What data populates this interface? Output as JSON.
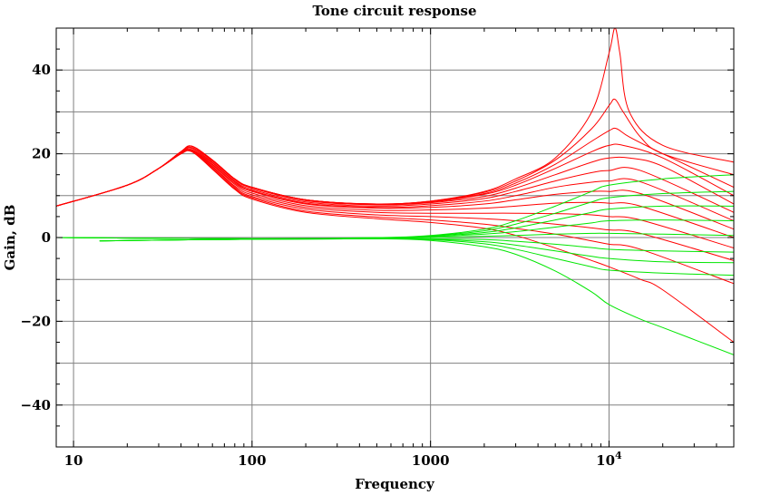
{
  "chart_data": {
    "type": "line",
    "title": "Tone circuit response",
    "xlabel": "Frequency",
    "ylabel": "Gain, dB",
    "x_scale": "log",
    "xlim": [
      8,
      50000
    ],
    "ylim": [
      -50,
      50
    ],
    "grid": true,
    "colors": {
      "red": "#ff0000",
      "green": "#00e600"
    },
    "x_ticks": [
      {
        "value": 10,
        "label": "10"
      },
      {
        "value": 100,
        "label": "100"
      },
      {
        "value": 1000,
        "label": "1000"
      },
      {
        "value": 10000,
        "label": "10^4"
      }
    ],
    "y_ticks": [
      {
        "value": 40,
        "label": "40"
      },
      {
        "value": 20,
        "label": "20"
      },
      {
        "value": 0,
        "label": "0"
      },
      {
        "value": -20,
        "label": "−20"
      },
      {
        "value": -40,
        "label": "−40"
      }
    ],
    "series": [
      {
        "color": "red",
        "x": [
          8,
          20,
          30,
          40,
          46,
          60,
          80,
          100,
          200,
          500,
          1000,
          2000,
          3000,
          5000,
          8000,
          10000,
          10800,
          11500,
          13000,
          20000,
          50000
        ],
        "y": [
          7.5,
          12.5,
          16.5,
          20.5,
          21.8,
          18.5,
          14,
          12,
          9,
          8,
          8.7,
          11,
          14,
          19,
          30,
          44,
          50,
          44,
          30,
          22,
          18
        ]
      },
      {
        "color": "red",
        "x": [
          8,
          20,
          30,
          40,
          46,
          60,
          80,
          100,
          200,
          500,
          1000,
          2000,
          3000,
          5000,
          8000,
          10000,
          10800,
          12000,
          15000,
          20000,
          50000
        ],
        "y": [
          7.5,
          12.5,
          16.5,
          20.5,
          21.8,
          18.5,
          14,
          12,
          9,
          8,
          8.7,
          10.8,
          13.5,
          18.5,
          26,
          31.5,
          33,
          30,
          24,
          20,
          15
        ]
      },
      {
        "color": "red",
        "x": [
          8,
          20,
          30,
          40,
          46,
          60,
          80,
          100,
          200,
          500,
          1000,
          2000,
          3000,
          5000,
          8000,
          10000,
          11000,
          13000,
          20000,
          50000
        ],
        "y": [
          7.5,
          12.5,
          16.5,
          20.5,
          21.8,
          18.5,
          14,
          12,
          9,
          8,
          8.6,
          10.5,
          13,
          17.5,
          23,
          25.5,
          26,
          24,
          20,
          12
        ]
      },
      {
        "color": "red",
        "x": [
          8,
          20,
          30,
          40,
          46,
          60,
          80,
          100,
          200,
          500,
          1000,
          2000,
          3000,
          5000,
          8000,
          10000,
          12000,
          20000,
          50000
        ],
        "y": [
          7.5,
          12.5,
          16.5,
          20.5,
          21.8,
          18.5,
          14,
          12,
          9,
          8,
          8.5,
          10.3,
          12.5,
          16.5,
          20.5,
          22,
          22,
          19,
          10
        ]
      },
      {
        "color": "red",
        "x": [
          8,
          20,
          30,
          40,
          46,
          60,
          80,
          100,
          200,
          500,
          1000,
          2000,
          3000,
          5000,
          8000,
          10000,
          13000,
          20000,
          50000
        ],
        "y": [
          7.5,
          12.5,
          16.5,
          20.5,
          21.5,
          18.3,
          13.8,
          11.8,
          8.8,
          7.8,
          8.3,
          9.8,
          11.8,
          15,
          18,
          19,
          19,
          17,
          8
        ]
      },
      {
        "color": "red",
        "x": [
          8,
          20,
          30,
          40,
          46,
          60,
          80,
          100,
          200,
          500,
          1000,
          2000,
          3000,
          5000,
          8000,
          10000,
          15000,
          50000
        ],
        "y": [
          7.5,
          12.5,
          16.5,
          20.3,
          21.3,
          18,
          13.5,
          11.5,
          8.5,
          7.5,
          8,
          9.3,
          11,
          13.5,
          15.5,
          16,
          16,
          6
        ]
      },
      {
        "color": "red",
        "x": [
          8,
          20,
          30,
          40,
          46,
          60,
          80,
          100,
          200,
          500,
          1000,
          2000,
          3000,
          5000,
          8000,
          10000,
          15000,
          50000
        ],
        "y": [
          7.5,
          12.5,
          16.5,
          20.2,
          21,
          17.8,
          13.3,
          11.2,
          8.2,
          7.2,
          7.6,
          8.7,
          10,
          12,
          13.2,
          13.5,
          13.3,
          4
        ]
      },
      {
        "color": "red",
        "x": [
          8,
          20,
          30,
          40,
          46,
          60,
          80,
          100,
          200,
          500,
          1000,
          2000,
          3000,
          5000,
          8000,
          10000,
          15000,
          50000
        ],
        "y": [
          7.5,
          12.5,
          16.5,
          20,
          20.8,
          17.5,
          13,
          11,
          8,
          7,
          7.2,
          8,
          9,
          10.3,
          11,
          11,
          10.5,
          2
        ]
      },
      {
        "color": "red",
        "x": [
          8,
          20,
          30,
          40,
          46,
          60,
          80,
          100,
          200,
          500,
          1000,
          2000,
          3000,
          5000,
          8000,
          10000,
          15000,
          50000
        ],
        "y": [
          7.5,
          12.5,
          16.5,
          20,
          20.7,
          17.3,
          12.7,
          10.6,
          7.6,
          6.5,
          6.6,
          7,
          7.5,
          8.2,
          8.4,
          8.2,
          7.5,
          0
        ]
      },
      {
        "color": "red",
        "x": [
          8,
          20,
          30,
          40,
          46,
          60,
          80,
          100,
          200,
          500,
          1000,
          2000,
          3000,
          5000,
          8000,
          10000,
          15000,
          50000
        ],
        "y": [
          7.5,
          12.5,
          16.5,
          20,
          20.6,
          17,
          12.3,
          10.2,
          7.2,
          6,
          5.8,
          5.8,
          5.8,
          5.7,
          5.4,
          5,
          4.2,
          -2.5
        ]
      },
      {
        "color": "red",
        "x": [
          8,
          20,
          30,
          40,
          46,
          60,
          80,
          100,
          200,
          500,
          1000,
          2000,
          3000,
          5000,
          8000,
          10000,
          15000,
          50000
        ],
        "y": [
          7.5,
          12.5,
          16.5,
          20,
          20.5,
          16.8,
          12,
          9.8,
          6.8,
          5.4,
          5,
          4.5,
          4,
          3.2,
          2.3,
          1.8,
          1,
          -5.5
        ]
      },
      {
        "color": "red",
        "x": [
          8,
          20,
          30,
          40,
          46,
          60,
          80,
          100,
          200,
          500,
          1000,
          2000,
          3000,
          5000,
          8000,
          10000,
          15000,
          50000
        ],
        "y": [
          7.5,
          12.5,
          16.5,
          20,
          20.5,
          16.5,
          11.7,
          9.5,
          6.3,
          4.9,
          4.2,
          3.2,
          2.2,
          0.8,
          -0.8,
          -1.6,
          -2.8,
          -11
        ]
      },
      {
        "color": "red",
        "x": [
          8,
          20,
          30,
          40,
          46,
          60,
          80,
          100,
          200,
          500,
          1000,
          2000,
          3000,
          5000,
          8000,
          10000,
          15000,
          20000,
          50000
        ],
        "y": [
          7.5,
          12.5,
          16.5,
          20,
          20.5,
          16.3,
          11.5,
          9.2,
          6,
          4.5,
          3.6,
          2.2,
          0.5,
          -2.5,
          -5.5,
          -7,
          -10,
          -12.5,
          -25
        ]
      },
      {
        "color": "green",
        "x": [
          8,
          100,
          500,
          1000,
          2000,
          3000,
          5000,
          8000,
          10000,
          20000,
          50000
        ],
        "y": [
          0,
          -0.3,
          0,
          0.5,
          2,
          4,
          7.5,
          11,
          12.5,
          14,
          15
        ]
      },
      {
        "color": "green",
        "x": [
          8,
          100,
          500,
          1000,
          2000,
          3000,
          5000,
          8000,
          10000,
          20000,
          50000
        ],
        "y": [
          0,
          -0.3,
          -0.1,
          0.4,
          1.6,
          3.2,
          5.8,
          8.5,
          9.5,
          10.5,
          11
        ]
      },
      {
        "color": "green",
        "x": [
          8,
          100,
          500,
          1000,
          2000,
          3000,
          5000,
          8000,
          10000,
          20000,
          50000
        ],
        "y": [
          0,
          -0.3,
          -0.1,
          0.3,
          1.2,
          2.3,
          4.2,
          6,
          6.8,
          7.5,
          7.5
        ]
      },
      {
        "color": "green",
        "x": [
          8,
          100,
          500,
          1000,
          2000,
          3000,
          5000,
          8000,
          10000,
          20000,
          50000
        ],
        "y": [
          0,
          -0.3,
          -0.2,
          0.2,
          0.8,
          1.4,
          2.5,
          3.5,
          4,
          4.2,
          4
        ]
      },
      {
        "color": "green",
        "x": [
          8,
          100,
          500,
          1000,
          2000,
          3000,
          5000,
          8000,
          10000,
          20000,
          50000
        ],
        "y": [
          0,
          -0.3,
          -0.2,
          0,
          0.3,
          0.5,
          0.8,
          1,
          1,
          0.8,
          0.5
        ]
      },
      {
        "color": "green",
        "x": [
          14,
          100,
          500,
          1000,
          2000,
          3000,
          5000,
          8000,
          10000,
          20000,
          50000
        ],
        "y": [
          -0.8,
          -0.4,
          -0.3,
          -0.3,
          -0.5,
          -0.9,
          -1.6,
          -2.4,
          -2.8,
          -3.2,
          -3.5
        ]
      },
      {
        "color": "green",
        "x": [
          14,
          100,
          500,
          1000,
          2000,
          3000,
          5000,
          8000,
          10000,
          20000,
          50000
        ],
        "y": [
          -0.8,
          -0.4,
          -0.3,
          -0.4,
          -1,
          -1.8,
          -3.2,
          -4.5,
          -5,
          -5.8,
          -6
        ]
      },
      {
        "color": "green",
        "x": [
          14,
          100,
          500,
          1000,
          2000,
          3000,
          5000,
          8000,
          10000,
          20000,
          50000
        ],
        "y": [
          -0.8,
          -0.4,
          -0.3,
          -0.5,
          -1.5,
          -2.8,
          -5,
          -7,
          -7.8,
          -8.5,
          -9
        ]
      },
      {
        "color": "green",
        "x": [
          14,
          100,
          500,
          1000,
          2000,
          3000,
          5000,
          8000,
          10000,
          15000,
          20000,
          50000
        ],
        "y": [
          -0.8,
          -0.4,
          -0.3,
          -0.7,
          -2.2,
          -4,
          -8,
          -13,
          -16,
          -19.5,
          -21.5,
          -28
        ]
      }
    ]
  }
}
